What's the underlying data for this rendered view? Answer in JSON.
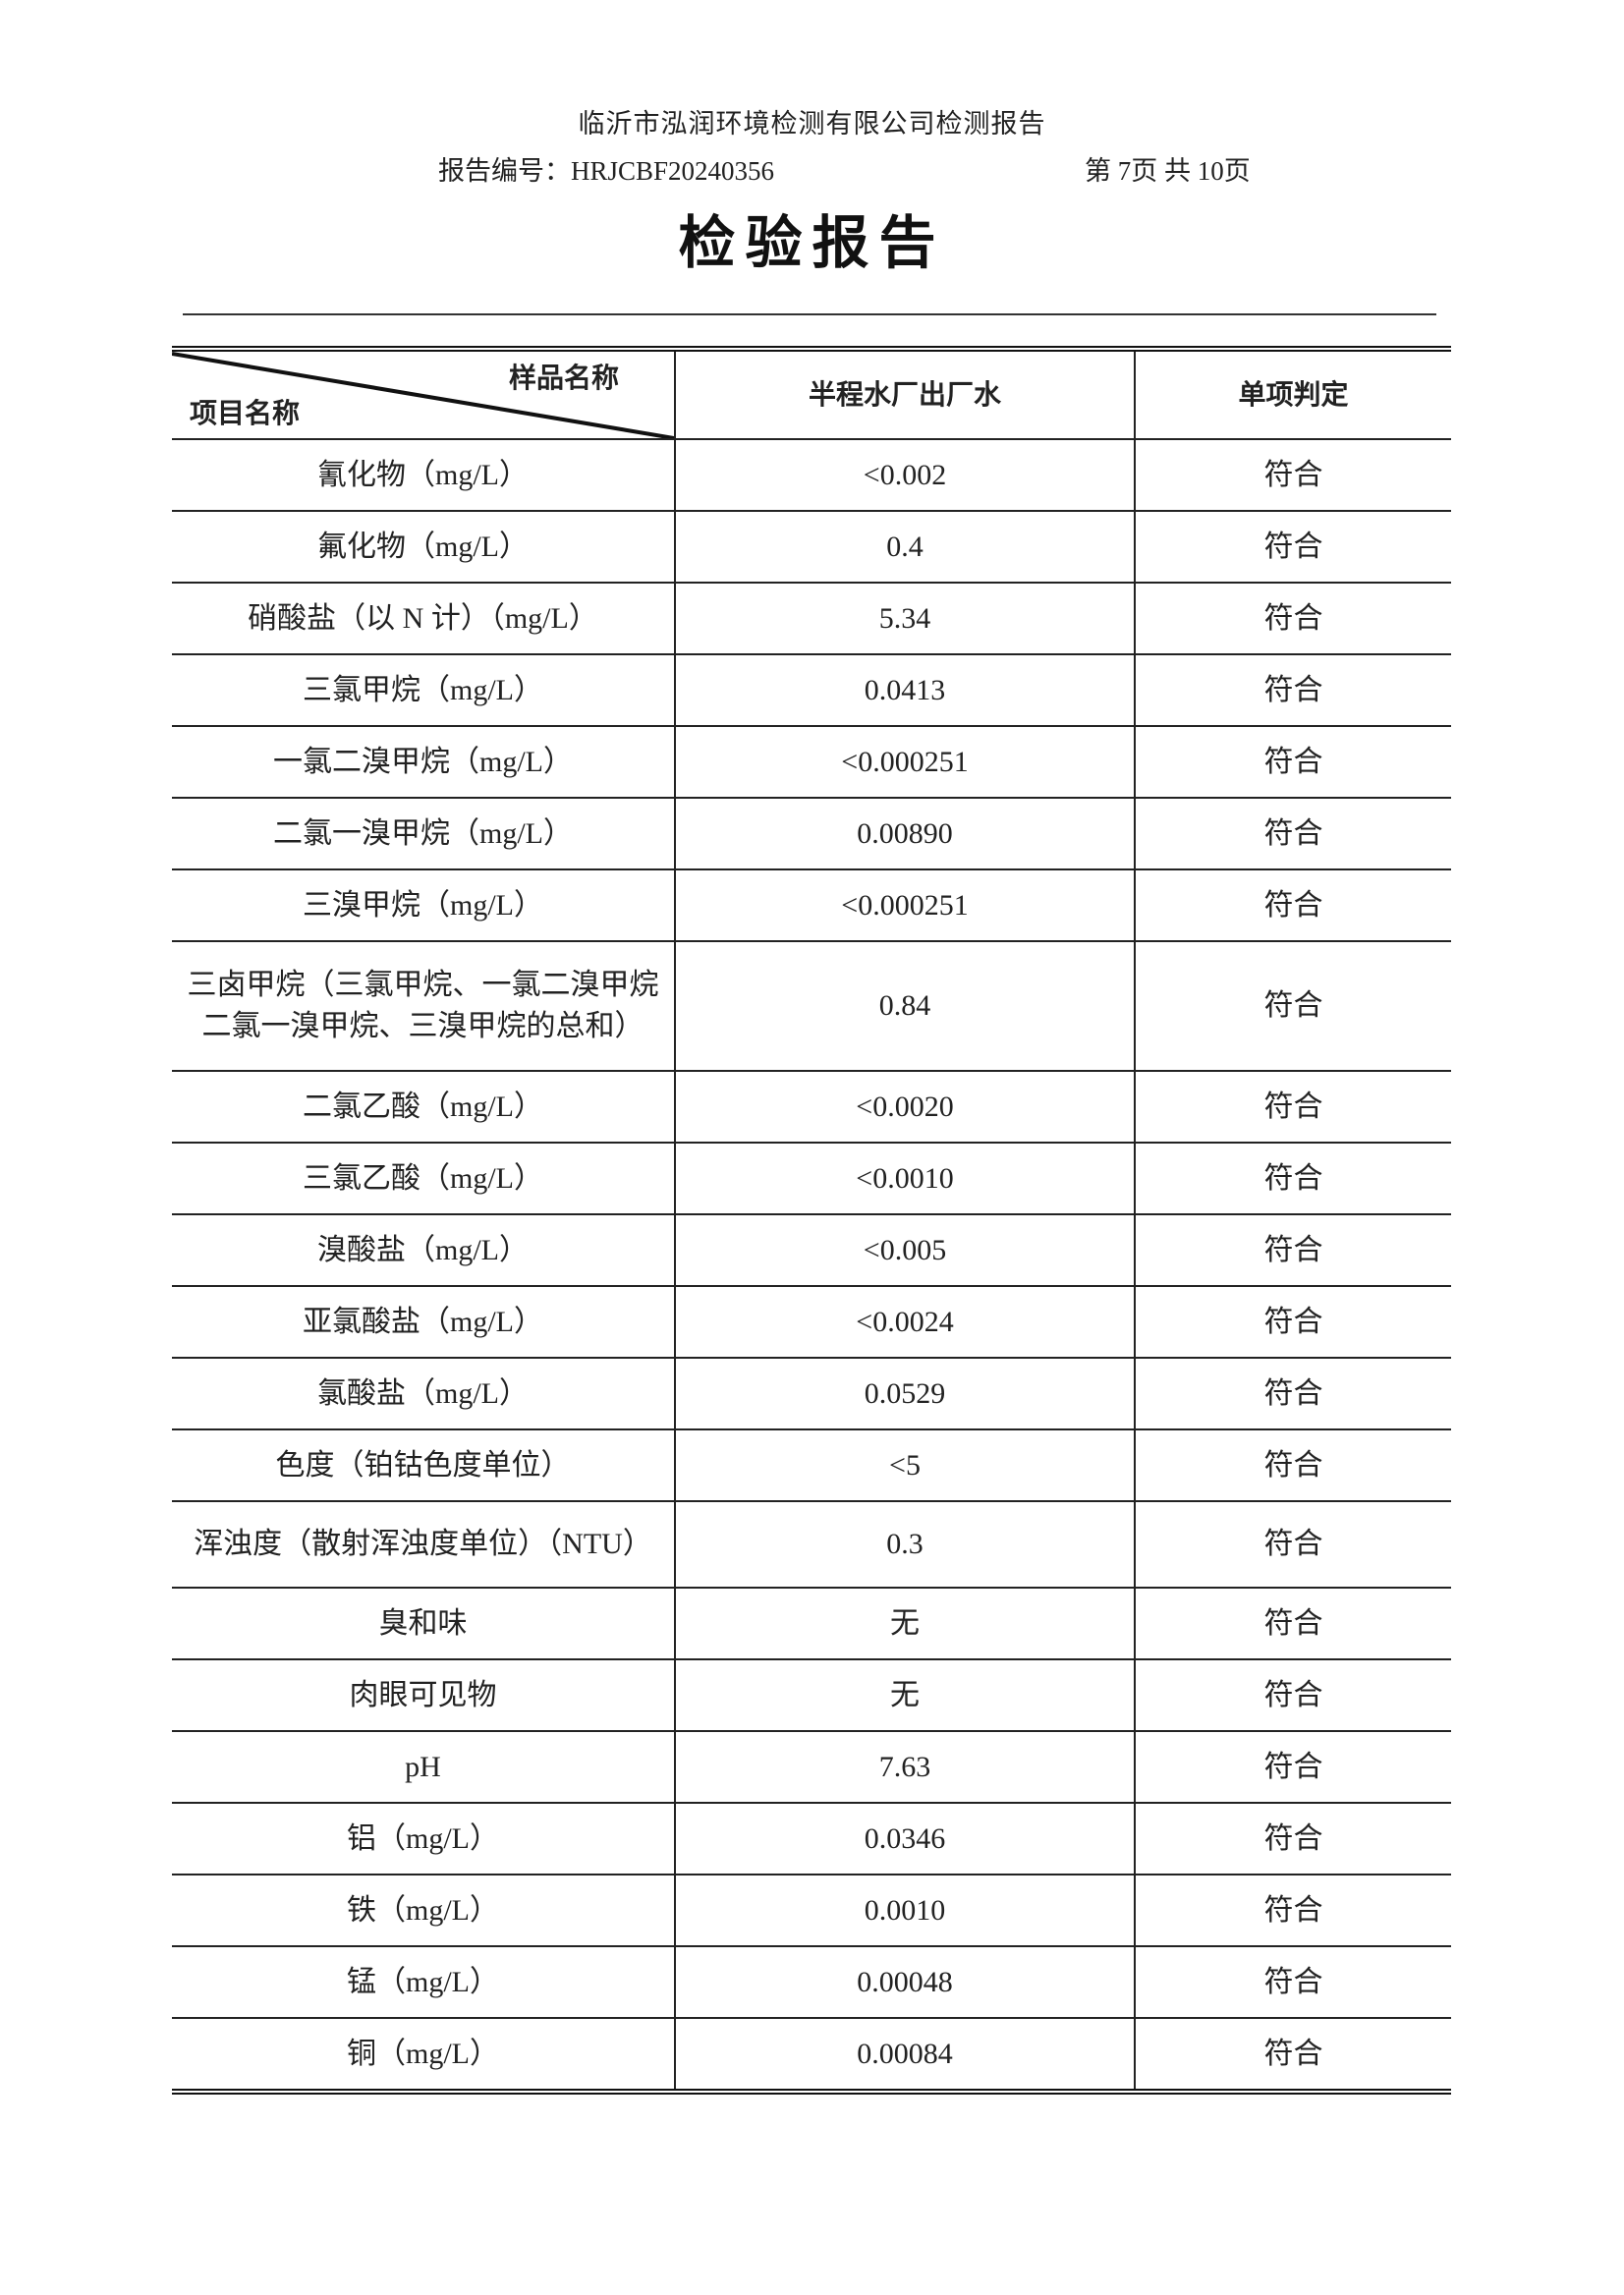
{
  "header": {
    "company": "临沂市泓润环境检测有限公司检测报告",
    "report_no": "报告编号：HRJCBF20240356",
    "page": "第 7页 共 10页",
    "title": "检验报告"
  },
  "table": {
    "corner_sample": "样品名称",
    "corner_item": "项目名称",
    "col_sample": "半程水厂出厂水",
    "col_judgement": "单项判定",
    "rows": [
      {
        "item": "氰化物（mg/L）",
        "value": "<0.002",
        "result": "符合"
      },
      {
        "item": "氟化物（mg/L）",
        "value": "0.4",
        "result": "符合"
      },
      {
        "item": "硝酸盐（以 N 计）（mg/L）",
        "value": "5.34",
        "result": "符合"
      },
      {
        "item": "三氯甲烷（mg/L）",
        "value": "0.0413",
        "result": "符合"
      },
      {
        "item": "一氯二溴甲烷（mg/L）",
        "value": "<0.000251",
        "result": "符合"
      },
      {
        "item": "二氯一溴甲烷（mg/L）",
        "value": "0.00890",
        "result": "符合"
      },
      {
        "item": "三溴甲烷（mg/L）",
        "value": "<0.000251",
        "result": "符合"
      },
      {
        "item": "三卤甲烷（三氯甲烷、一氯二溴甲烷二氯一溴甲烷、三溴甲烷的总和）",
        "value": "0.84",
        "result": "符合"
      },
      {
        "item": "二氯乙酸（mg/L）",
        "value": "<0.0020",
        "result": "符合"
      },
      {
        "item": "三氯乙酸（mg/L）",
        "value": "<0.0010",
        "result": "符合"
      },
      {
        "item": "溴酸盐（mg/L）",
        "value": "<0.005",
        "result": "符合"
      },
      {
        "item": "亚氯酸盐（mg/L）",
        "value": "<0.0024",
        "result": "符合"
      },
      {
        "item": "氯酸盐（mg/L）",
        "value": "0.0529",
        "result": "符合"
      },
      {
        "item": "色度（铂钴色度单位）",
        "value": "<5",
        "result": "符合"
      },
      {
        "item": "浑浊度（散射浑浊度单位）（NTU）",
        "value": "0.3",
        "result": "符合"
      },
      {
        "item": "臭和味",
        "value": "无",
        "result": "符合"
      },
      {
        "item": "肉眼可见物",
        "value": "无",
        "result": "符合"
      },
      {
        "item": "pH",
        "value": "7.63",
        "result": "符合"
      },
      {
        "item": "铝（mg/L）",
        "value": "0.0346",
        "result": "符合"
      },
      {
        "item": "铁（mg/L）",
        "value": "0.0010",
        "result": "符合"
      },
      {
        "item": "锰（mg/L）",
        "value": "0.00048",
        "result": "符合"
      },
      {
        "item": "铜（mg/L）",
        "value": "0.00084",
        "result": "符合"
      }
    ]
  }
}
